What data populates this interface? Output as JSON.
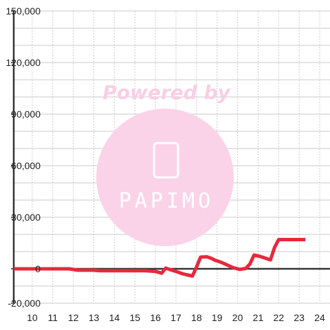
{
  "chart_data": {
    "type": "line",
    "title": "",
    "xlabel": "",
    "ylabel": "",
    "xlim": [
      9.1,
      24.5
    ],
    "ylim": [
      -20000,
      150000
    ],
    "x_ticks": [
      10,
      11,
      12,
      13,
      14,
      15,
      16,
      17,
      18,
      19,
      20,
      21,
      22,
      23,
      24
    ],
    "y_ticks": [
      -20000,
      0,
      30000,
      60000,
      90000,
      120000,
      150000
    ],
    "y_tick_labels": [
      "-20,000",
      "0",
      "30,000",
      "60,000",
      "90,000",
      "120,000",
      "150,000"
    ],
    "grid": true,
    "legend": "none",
    "series": [
      {
        "color": "#e8283c",
        "x": [
          9.1,
          11.8,
          12.2,
          13.0,
          13.3,
          15.5,
          16.0,
          16.3,
          16.5,
          16.7,
          17.0,
          17.3,
          17.5,
          17.8,
          18.0,
          18.2,
          18.5,
          18.7,
          18.9,
          19.2,
          19.5,
          19.8,
          20.1,
          20.4,
          20.6,
          20.8,
          21.1,
          21.4,
          21.6,
          21.8,
          22.0,
          22.5,
          23.3
        ],
        "y": [
          0,
          0,
          -800,
          -800,
          -1100,
          -1100,
          -1500,
          -2500,
          400,
          -400,
          -1500,
          -2800,
          -3400,
          -4200,
          1000,
          6800,
          7000,
          6200,
          5000,
          3800,
          2200,
          600,
          -300,
          200,
          2800,
          8000,
          7200,
          6000,
          5200,
          12500,
          17000,
          17000,
          17000
        ]
      }
    ]
  },
  "watermark": {
    "text": "Powered by",
    "logo_text": "PAPIMO",
    "circle_color": "#fbd3e9"
  }
}
